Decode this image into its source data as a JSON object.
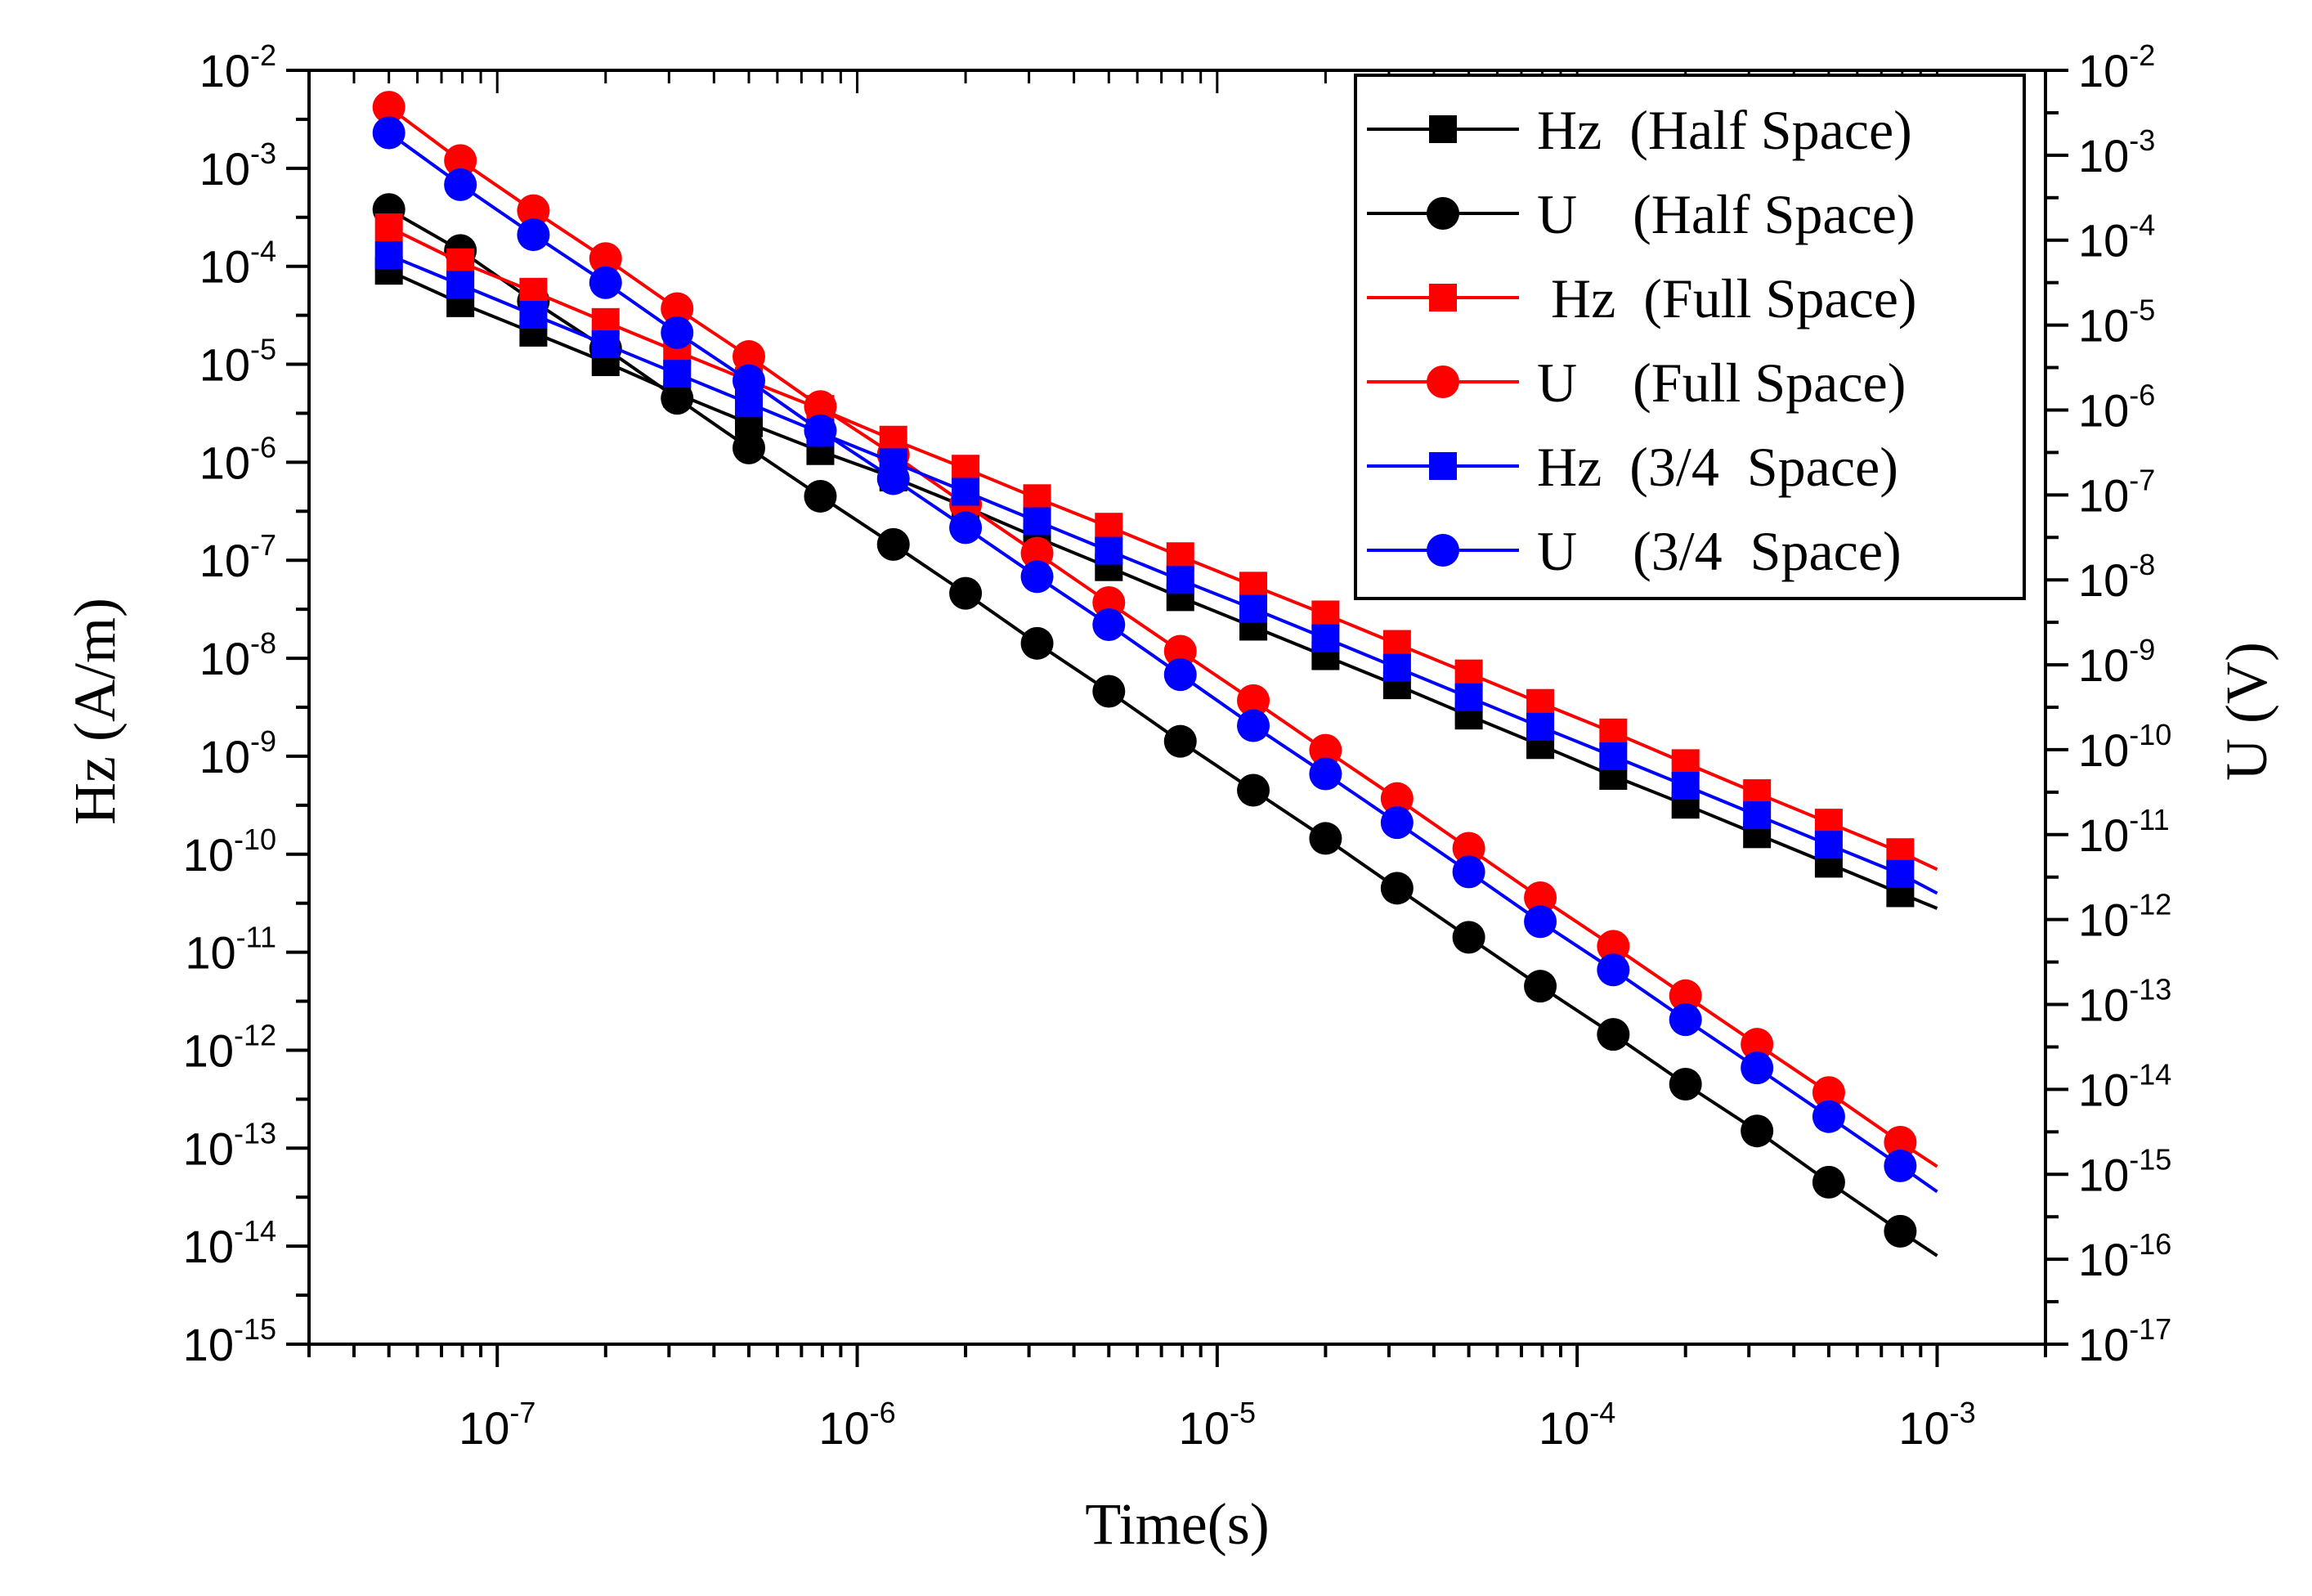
{
  "chart_data": {
    "type": "line",
    "title": "",
    "xlabel": "Time(s)",
    "ylabel_left": "Hz (A/m)",
    "ylabel_right": "U (V)",
    "xscale": "log",
    "yscale": "log",
    "xlim": [
      3e-08,
      0.002
    ],
    "ylim_left": [
      1e-15,
      0.01
    ],
    "ylim_right": [
      1e-17,
      0.01
    ],
    "x_ticks": [
      {
        "base": "10",
        "exp": "-7",
        "value": 1e-07
      },
      {
        "base": "10",
        "exp": "-6",
        "value": 1e-06
      },
      {
        "base": "10",
        "exp": "-5",
        "value": 1e-05
      },
      {
        "base": "10",
        "exp": "-4",
        "value": 0.0001
      },
      {
        "base": "10",
        "exp": "-3",
        "value": 0.001
      }
    ],
    "y_left_ticks": [
      {
        "base": "10",
        "exp": "-2",
        "value": 0.01
      },
      {
        "base": "10",
        "exp": "-3",
        "value": 0.001
      },
      {
        "base": "10",
        "exp": "-4",
        "value": 0.0001
      },
      {
        "base": "10",
        "exp": "-5",
        "value": 1e-05
      },
      {
        "base": "10",
        "exp": "-6",
        "value": 1e-06
      },
      {
        "base": "10",
        "exp": "-7",
        "value": 1e-07
      },
      {
        "base": "10",
        "exp": "-8",
        "value": 1e-08
      },
      {
        "base": "10",
        "exp": "-9",
        "value": 1e-09
      },
      {
        "base": "10",
        "exp": "-10",
        "value": 1e-10
      },
      {
        "base": "10",
        "exp": "-11",
        "value": 1e-11
      },
      {
        "base": "10",
        "exp": "-12",
        "value": 1e-12
      },
      {
        "base": "10",
        "exp": "-13",
        "value": 1e-13
      },
      {
        "base": "10",
        "exp": "-14",
        "value": 1e-14
      },
      {
        "base": "10",
        "exp": "-15",
        "value": 1e-15
      }
    ],
    "y_right_ticks": [
      {
        "base": "10",
        "exp": "-2",
        "value": 0.01
      },
      {
        "base": "10",
        "exp": "-3",
        "value": 0.001
      },
      {
        "base": "10",
        "exp": "-4",
        "value": 0.0001
      },
      {
        "base": "10",
        "exp": "-5",
        "value": 1e-05
      },
      {
        "base": "10",
        "exp": "-6",
        "value": 1e-06
      },
      {
        "base": "10",
        "exp": "-7",
        "value": 1e-07
      },
      {
        "base": "10",
        "exp": "-8",
        "value": 1e-08
      },
      {
        "base": "10",
        "exp": "-9",
        "value": 1e-09
      },
      {
        "base": "10",
        "exp": "-10",
        "value": 1e-10
      },
      {
        "base": "10",
        "exp": "-11",
        "value": 1e-11
      },
      {
        "base": "10",
        "exp": "-12",
        "value": 1e-12
      },
      {
        "base": "10",
        "exp": "-13",
        "value": 1e-13
      },
      {
        "base": "10",
        "exp": "-14",
        "value": 1e-14
      },
      {
        "base": "10",
        "exp": "-15",
        "value": 1e-15
      },
      {
        "base": "10",
        "exp": "-16",
        "value": 1e-16
      },
      {
        "base": "10",
        "exp": "-17",
        "value": 1e-17
      }
    ],
    "legend_position": "top-right",
    "series": [
      {
        "name": "Hz  (Half Space)",
        "axis": "left",
        "color": "#000000",
        "marker": "square",
        "x": [
          5e-08,
          7.9e-08,
          1.26e-07,
          2e-07,
          3.16e-07,
          5e-07,
          7.9e-07,
          1.26e-06,
          2e-06,
          3.16e-06,
          5e-06,
          7.9e-06,
          1.26e-05,
          2e-05,
          3.16e-05,
          5e-05,
          7.9e-05,
          0.000126,
          0.0002,
          0.000316,
          0.0005,
          0.00079
        ],
        "y": [
          9e-05,
          4.2e-05,
          2.1e-05,
          1.05e-05,
          5e-06,
          2.5e-06,
          1.3e-06,
          7e-07,
          3.5e-07,
          1.7e-07,
          8.5e-08,
          4.2e-08,
          2.1e-08,
          1.05e-08,
          5.3e-09,
          2.6e-09,
          1.3e-09,
          6.3e-10,
          3.2e-10,
          1.6e-10,
          8e-11,
          4e-11
        ],
        "line_end": {
          "x": 0.001,
          "y": 2.8e-11
        }
      },
      {
        "name": "U    (Half Space)",
        "axis": "left",
        "color": "#000000",
        "marker": "circle",
        "x": [
          5e-08,
          7.9e-08,
          1.26e-07,
          2e-07,
          3.16e-07,
          5e-07,
          7.9e-07,
          1.26e-06,
          2e-06,
          3.16e-06,
          5e-06,
          7.9e-06,
          1.26e-05,
          2e-05,
          3.16e-05,
          5e-05,
          7.9e-05,
          0.000126,
          0.0002,
          0.000316,
          0.0005,
          0.00079
        ],
        "y": [
          0.00038,
          0.000145,
          4.4e-05,
          1.45e-05,
          4.5e-06,
          1.4e-06,
          4.5e-07,
          1.45e-07,
          4.6e-08,
          1.42e-08,
          4.6e-09,
          1.42e-09,
          4.5e-10,
          1.45e-10,
          4.5e-11,
          1.42e-11,
          4.5e-12,
          1.45e-12,
          4.5e-13,
          1.5e-13,
          4.5e-14,
          1.42e-14
        ],
        "line_end": {
          "x": 0.001,
          "y": 8e-15
        }
      },
      {
        "name": " Hz  (Full Space)",
        "axis": "left",
        "color": "#ff0000",
        "marker": "square",
        "x": [
          5e-08,
          7.9e-08,
          1.26e-07,
          2e-07,
          3.16e-07,
          5e-07,
          7.9e-07,
          1.26e-06,
          2e-06,
          3.16e-06,
          5e-06,
          7.9e-06,
          1.26e-05,
          2e-05,
          3.16e-05,
          5e-05,
          7.9e-05,
          0.000126,
          0.0002,
          0.000316,
          0.0005,
          0.00079
        ],
        "y": [
          0.00025,
          0.00011,
          5.5e-05,
          2.7e-05,
          1.35e-05,
          6.8e-06,
          3.5e-06,
          1.7e-06,
          8.6e-07,
          4.3e-07,
          2.2e-07,
          1.1e-07,
          5.5e-08,
          2.8e-08,
          1.4e-08,
          7e-09,
          3.5e-09,
          1.75e-09,
          8.5e-10,
          4.2e-10,
          2.1e-10,
          1.05e-10
        ],
        "line_end": {
          "x": 0.001,
          "y": 7e-11
        }
      },
      {
        "name": "U    (Full Space)",
        "axis": "left",
        "color": "#ff0000",
        "marker": "circle",
        "x": [
          5e-08,
          7.9e-08,
          1.26e-07,
          2e-07,
          3.16e-07,
          5e-07,
          7.9e-07,
          1.26e-06,
          2e-06,
          3.16e-06,
          5e-06,
          7.9e-06,
          1.26e-05,
          2e-05,
          3.16e-05,
          5e-05,
          7.9e-05,
          0.000126,
          0.0002,
          0.000316,
          0.0005,
          0.00079
        ],
        "y": [
          0.0042,
          0.0012,
          0.00037,
          0.00012,
          3.7e-05,
          1.2e-05,
          3.7e-06,
          1.2e-06,
          3.7e-07,
          1.18e-07,
          3.7e-08,
          1.18e-08,
          3.7e-09,
          1.15e-09,
          3.7e-10,
          1.15e-10,
          3.6e-11,
          1.15e-11,
          3.6e-12,
          1.15e-12,
          3.7e-13,
          1.15e-13
        ],
        "line_end": {
          "x": 0.001,
          "y": 6.5e-14
        }
      },
      {
        "name": "Hz  (3/4  Space)",
        "axis": "left",
        "color": "#0000ff",
        "marker": "square",
        "x": [
          5e-08,
          7.9e-08,
          1.26e-07,
          2e-07,
          3.16e-07,
          5e-07,
          7.9e-07,
          1.26e-06,
          2e-06,
          3.16e-06,
          5e-06,
          7.9e-06,
          1.26e-05,
          2e-05,
          3.16e-05,
          5e-05,
          7.9e-05,
          0.000126,
          0.0002,
          0.000316,
          0.0005,
          0.00079
        ],
        "y": [
          0.00013,
          6.5e-05,
          3.2e-05,
          1.6e-05,
          8e-06,
          4e-06,
          2e-06,
          1e-06,
          5e-07,
          2.5e-07,
          1.25e-07,
          6.3e-08,
          3.2e-08,
          1.6e-08,
          8e-09,
          4e-09,
          2e-09,
          1e-09,
          5e-10,
          2.5e-10,
          1.25e-10,
          6.3e-11
        ],
        "line_end": {
          "x": 0.001,
          "y": 4e-11
        }
      },
      {
        "name": "U    (3/4  Space)",
        "axis": "left",
        "color": "#0000ff",
        "marker": "circle",
        "x": [
          5e-08,
          7.9e-08,
          1.26e-07,
          2e-07,
          3.16e-07,
          5e-07,
          7.9e-07,
          1.26e-06,
          2e-06,
          3.16e-06,
          5e-06,
          7.9e-06,
          1.26e-05,
          2e-05,
          3.16e-05,
          5e-05,
          7.9e-05,
          0.000126,
          0.0002,
          0.000316,
          0.0005,
          0.00079
        ],
        "y": [
          0.0023,
          0.00068,
          0.00021,
          6.8e-05,
          2.1e-05,
          6.8e-06,
          2.1e-06,
          6.8e-07,
          2.15e-07,
          6.8e-08,
          2.2e-08,
          6.8e-09,
          2.05e-09,
          6.6e-10,
          2.1e-10,
          6.6e-11,
          2.05e-11,
          6.6e-12,
          2.05e-12,
          6.6e-13,
          2.1e-13,
          6.6e-14
        ],
        "line_end": {
          "x": 0.001,
          "y": 3.6e-14
        }
      }
    ]
  }
}
